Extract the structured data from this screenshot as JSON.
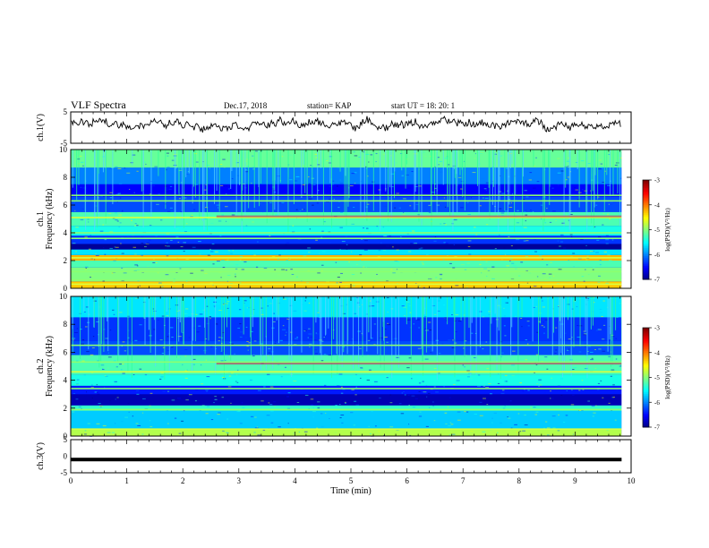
{
  "header": {
    "title": "VLF Spectra",
    "date": "Dec.17, 2018",
    "station": "station= KAP",
    "start": "start UT =  18: 20: 1"
  },
  "chart_data": [
    {
      "type": "line",
      "panel": "ch1-waveform",
      "ylabel": "ch.1(V)",
      "ylim": [
        -5,
        5
      ],
      "yticks": [
        "5",
        "-5"
      ],
      "xlim": [
        0,
        10
      ],
      "x_end": 9.83,
      "values_description_level": [
        0.3,
        2.5
      ]
    },
    {
      "type": "heatmap",
      "panel": "ch1-spectrogram",
      "ylabel": "ch.1",
      "ylabel2": "Frequency (kHz)",
      "ylim": [
        0,
        10
      ],
      "yticks": [
        "0",
        "2",
        "4",
        "6",
        "8",
        "10"
      ],
      "xlim": [
        0,
        10
      ],
      "colorbar": {
        "label": "log(PSD)(V²/Hz)",
        "range": [
          -7,
          -3
        ],
        "ticks": [
          "-3",
          "-4",
          "-5",
          "-6",
          "-7"
        ]
      },
      "bands_khz": [
        {
          "from": 0.0,
          "to": 0.5,
          "level": -4.3
        },
        {
          "from": 0.5,
          "to": 1.5,
          "level": -5.0
        },
        {
          "from": 1.5,
          "to": 2.0,
          "level": -5.2
        },
        {
          "from": 2.0,
          "to": 2.4,
          "level": -4.2
        },
        {
          "from": 2.4,
          "to": 2.8,
          "level": -5.6
        },
        {
          "from": 2.8,
          "to": 3.2,
          "level": -6.9
        },
        {
          "from": 3.2,
          "to": 3.8,
          "level": -6.3
        },
        {
          "from": 3.8,
          "to": 4.5,
          "level": -5.4
        },
        {
          "from": 4.5,
          "to": 5.5,
          "level": -5.2
        },
        {
          "from": 5.5,
          "to": 6.6,
          "level": -6.2
        },
        {
          "from": 6.6,
          "to": 7.5,
          "level": -6.5
        },
        {
          "from": 7.5,
          "to": 8.7,
          "level": -6.0
        },
        {
          "from": 8.7,
          "to": 10.0,
          "level": -5.1
        }
      ],
      "lines_khz": [
        0.3,
        0.6,
        1.2,
        2.2,
        3.6,
        4.0,
        5.1,
        6.3,
        6.7
      ]
    },
    {
      "type": "heatmap",
      "panel": "ch2-spectrogram",
      "ylabel": "ch.2",
      "ylabel2": "Frequency (kHz)",
      "ylim": [
        0,
        10
      ],
      "yticks": [
        "0",
        "2",
        "4",
        "6",
        "8",
        "10"
      ],
      "xlim": [
        0,
        10
      ],
      "colorbar": {
        "label": "log(PSD)(V²/Hz)",
        "range": [
          -7,
          -3
        ],
        "ticks": [
          "-3",
          "-4",
          "-5",
          "-6",
          "-7"
        ]
      },
      "bands_khz": [
        {
          "from": 0.0,
          "to": 0.5,
          "level": -4.8
        },
        {
          "from": 0.5,
          "to": 1.8,
          "level": -5.7
        },
        {
          "from": 1.8,
          "to": 2.2,
          "level": -5.3
        },
        {
          "from": 2.2,
          "to": 3.0,
          "level": -6.8
        },
        {
          "from": 3.0,
          "to": 3.6,
          "level": -6.4
        },
        {
          "from": 3.6,
          "to": 4.4,
          "level": -5.4
        },
        {
          "from": 4.4,
          "to": 5.8,
          "level": -5.2
        },
        {
          "from": 5.8,
          "to": 6.8,
          "level": -6.2
        },
        {
          "from": 6.8,
          "to": 8.5,
          "level": -6.3
        },
        {
          "from": 8.5,
          "to": 10.0,
          "level": -5.6
        }
      ],
      "lines_khz": [
        0.5,
        1.9,
        3.4,
        4.6,
        5.3,
        6.5
      ]
    },
    {
      "type": "line",
      "panel": "ch3-waveform",
      "ylabel": "ch.3(V)",
      "ylim": [
        -5,
        5
      ],
      "yticks": [
        "5",
        "0",
        "-5"
      ],
      "xlim": [
        0,
        10
      ],
      "level": -1.0,
      "xlabel": "Time (min)",
      "xticks": [
        "0",
        "1",
        "2",
        "3",
        "4",
        "5",
        "6",
        "7",
        "8",
        "9",
        "10"
      ]
    }
  ]
}
